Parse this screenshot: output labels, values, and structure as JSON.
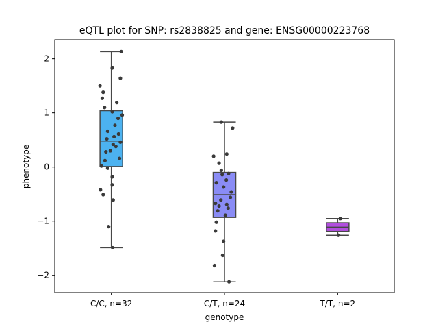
{
  "chart_data": {
    "type": "box",
    "title": "eQTL plot for SNP: rs2838825 and gene: ENSG00000223768",
    "xlabel": "genotype",
    "ylabel": "phenotype",
    "ylim": [
      -2.32,
      2.35
    ],
    "yticks": [
      -2,
      -1,
      0,
      1,
      2
    ],
    "grid": false,
    "categories": [
      "C/C, n=32",
      "C/T, n=24",
      "T/T, n=2"
    ],
    "colors": [
      "#4cb2f0",
      "#8a8cf5",
      "#b14fde"
    ],
    "boxes": [
      {
        "whislo": -1.49,
        "q1": 0.01,
        "med": 0.48,
        "q3": 1.04,
        "whishi": 2.13
      },
      {
        "whislo": -2.12,
        "q1": -0.93,
        "med": -0.51,
        "q3": -0.1,
        "whishi": 0.83
      },
      {
        "whislo": -1.26,
        "q1": -1.19,
        "med": -1.11,
        "q3": -1.03,
        "whishi": -0.95
      }
    ],
    "points": [
      [
        [
          -0.25,
          1.5
        ],
        [
          0.22,
          2.13
        ],
        [
          0.02,
          1.83
        ],
        [
          0.2,
          1.64
        ],
        [
          -0.18,
          1.38
        ],
        [
          -0.2,
          1.27
        ],
        [
          0.12,
          1.19
        ],
        [
          -0.15,
          1.1
        ],
        [
          0.02,
          1.02
        ],
        [
          0.24,
          0.96
        ],
        [
          0.15,
          0.9
        ],
        [
          -0.08,
          0.66
        ],
        [
          0.08,
          0.77
        ],
        [
          0.16,
          0.61
        ],
        [
          0.06,
          0.56
        ],
        [
          -0.1,
          0.52
        ],
        [
          0.2,
          0.46
        ],
        [
          0.04,
          0.42
        ],
        [
          0.1,
          0.38
        ],
        [
          -0.12,
          0.28
        ],
        [
          0.18,
          0.16
        ],
        [
          -0.14,
          0.12
        ],
        [
          -0.22,
          0.02
        ],
        [
          -0.08,
          -0.02
        ],
        [
          0.02,
          -0.18
        ],
        [
          0.02,
          -0.33
        ],
        [
          -0.24,
          -0.42
        ],
        [
          -0.18,
          -0.51
        ],
        [
          0.04,
          -0.61
        ],
        [
          -0.06,
          -1.1
        ],
        [
          0.03,
          -1.49
        ],
        [
          -0.02,
          0.3
        ]
      ],
      [
        [
          -0.07,
          0.83
        ],
        [
          0.18,
          0.72
        ],
        [
          0.05,
          0.24
        ],
        [
          -0.24,
          0.2
        ],
        [
          -0.12,
          0.07
        ],
        [
          -0.07,
          -0.06
        ],
        [
          0.09,
          -0.12
        ],
        [
          -0.05,
          -0.14
        ],
        [
          0.04,
          -0.24
        ],
        [
          -0.18,
          -0.29
        ],
        [
          -0.02,
          -0.37
        ],
        [
          0.15,
          -0.46
        ],
        [
          0.13,
          -0.56
        ],
        [
          -0.08,
          -0.61
        ],
        [
          -0.2,
          -0.67
        ],
        [
          0.05,
          -0.69
        ],
        [
          -0.12,
          -0.72
        ],
        [
          0.08,
          -0.76
        ],
        [
          -0.15,
          -0.81
        ],
        [
          0.02,
          -0.89
        ],
        [
          -0.18,
          -1.02
        ],
        [
          -0.2,
          -1.18
        ],
        [
          -0.02,
          -1.37
        ],
        [
          0.1,
          -2.12
        ]
      ],
      [
        [
          0.06,
          -0.95
        ],
        [
          0.02,
          -1.26
        ]
      ]
    ],
    "extra_points": [
      [
        1,
        -0.04,
        -1.63
      ],
      [
        1,
        -0.22,
        -1.82
      ]
    ]
  }
}
